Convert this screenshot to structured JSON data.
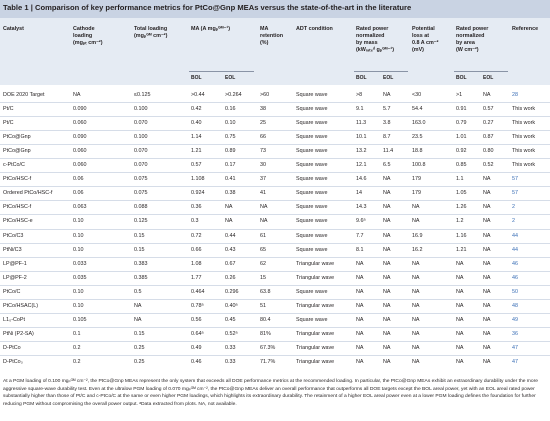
{
  "table": {
    "label": "Table 1 |",
    "title": "Comparison of key performance metrics for PtCo@Gnp MEAs versus the state-of-the-art in the literature",
    "headers": {
      "catalyst": "Catalyst",
      "cathode": [
        "Cathode",
        "loading",
        "(mgₚₜ cm⁻²)"
      ],
      "total": [
        "Total loading",
        "(mgₚᴳᴹ cm⁻²)"
      ],
      "ma": [
        "MA (A mgₚᴳᴹ⁻¹)"
      ],
      "ma_ret": [
        "MA",
        "retention",
        "(%)"
      ],
      "adt": [
        "ADT condition"
      ],
      "rated_mass": [
        "Rated power",
        "normalized",
        "by mass",
        "(kWᵣₐₜₑᵈ gₚᴳᴹ⁻¹)"
      ],
      "potential": [
        "Potential",
        "loss at",
        "0.8 A cm⁻²",
        "(mV)"
      ],
      "rated_area": [
        "Rated power",
        "normalized",
        "by area",
        "(W cm⁻²)"
      ],
      "reference": [
        "Reference"
      ],
      "bol": "BOL",
      "eol": "EOL"
    },
    "rows": [
      [
        "DOE 2020 Target",
        "NA",
        "≤0.125",
        ">0.44",
        ">0.264",
        ">60",
        "Square wave",
        ">8",
        "NA",
        "<30",
        ">1",
        "NA",
        "28"
      ],
      [
        "Pt/C",
        "0.090",
        "0.100",
        "0.42",
        "0.16",
        "38",
        "Square wave",
        "9.1",
        "5.7",
        "54.4",
        "0.91",
        "0.57",
        "This work"
      ],
      [
        "Pt/C",
        "0.060",
        "0.070",
        "0.40",
        "0.10",
        "25",
        "Square wave",
        "11.3",
        "3.8",
        "163.0",
        "0.79",
        "0.27",
        "This work"
      ],
      [
        "PtCo@Gnp",
        "0.090",
        "0.100",
        "1.14",
        "0.75",
        "66",
        "Square wave",
        "10.1",
        "8.7",
        "23.5",
        "1.01",
        "0.87",
        "This work"
      ],
      [
        "PtCo@Gnp",
        "0.060",
        "0.070",
        "1.21",
        "0.89",
        "73",
        "Square wave",
        "13.2",
        "11.4",
        "18.8",
        "0.92",
        "0.80",
        "This work"
      ],
      [
        "c-PtCo/C",
        "0.060",
        "0.070",
        "0.57",
        "0.17",
        "30",
        "Square wave",
        "12.1",
        "6.5",
        "100.8",
        "0.85",
        "0.52",
        "This work"
      ],
      [
        "PtCo/HSC-f",
        "0.06",
        "0.075",
        "1.108",
        "0.41",
        "37",
        "Square wave",
        "14.6",
        "NA",
        "179",
        "1.1",
        "NA",
        "57"
      ],
      [
        "Ordered PtCo/HSC-f",
        "0.06",
        "0.075",
        "0.924",
        "0.38",
        "41",
        "Square wave",
        "14",
        "NA",
        "179",
        "1.05",
        "NA",
        "57"
      ],
      [
        "PtCo/HSC-f",
        "0.063",
        "0.088",
        "0.36",
        "NA",
        "NA",
        "Square wave",
        "14.3",
        "NA",
        "NA",
        "1.26",
        "NA",
        "2"
      ],
      [
        "PtCo/HSC-e",
        "0.10",
        "0.125",
        "0.3",
        "NA",
        "NA",
        "Square wave",
        "9.6ᵃ",
        "NA",
        "NA",
        "1.2",
        "NA",
        "2"
      ],
      [
        "PtCo/C3",
        "0.10",
        "0.15",
        "0.72",
        "0.44",
        "61",
        "Square wave",
        "7.7",
        "NA",
        "16.9",
        "1.16",
        "NA",
        "44"
      ],
      [
        "PtNi/C3",
        "0.10",
        "0.15",
        "0.66",
        "0.43",
        "65",
        "Square wave",
        "8.1",
        "NA",
        "16.2",
        "1.21",
        "NA",
        "44"
      ],
      [
        "LP@PF-1",
        "0.033",
        "0.383",
        "1.08",
        "0.67",
        "62",
        "Triangular wave",
        "NA",
        "NA",
        "NA",
        "NA",
        "NA",
        "46"
      ],
      [
        "LP@PF-2",
        "0.035",
        "0.385",
        "1.77",
        "0.26",
        "15",
        "Triangular wave",
        "NA",
        "NA",
        "NA",
        "NA",
        "NA",
        "46"
      ],
      [
        "PtCo/C",
        "0.10",
        "0.5",
        "0.464",
        "0.296",
        "63.8",
        "Square wave",
        "NA",
        "NA",
        "NA",
        "NA",
        "NA",
        "50"
      ],
      [
        "PtCo/HSAC(L)",
        "0.10",
        "NA",
        "0.78ᵃ",
        "0.40ᵃ",
        "51",
        "Triangular wave",
        "NA",
        "NA",
        "NA",
        "NA",
        "NA",
        "48"
      ],
      [
        "L1₀-CoPt",
        "0.105",
        "NA",
        "0.56",
        "0.45",
        "80.4",
        "Square wave",
        "NA",
        "NA",
        "NA",
        "NA",
        "NA",
        "49"
      ],
      [
        "PtNi (P2-SA)",
        "0.1",
        "0.15",
        "0.64ᵃ",
        "0.52ᵃ",
        "81%",
        "Triangular wave",
        "NA",
        "NA",
        "NA",
        "NA",
        "NA",
        "36"
      ],
      [
        "D-PtCo",
        "0.2",
        "0.25",
        "0.49",
        "0.33",
        "67.3%",
        "Triangular wave",
        "NA",
        "NA",
        "NA",
        "NA",
        "NA",
        "47"
      ],
      [
        "D-PtCo₃",
        "0.2",
        "0.25",
        "0.46",
        "0.33",
        "71.7%",
        "Triangular wave",
        "NA",
        "NA",
        "NA",
        "NA",
        "NA",
        "47"
      ]
    ],
    "footnote": "At a PGM loading of 0.100 mgₚᴳᴹ cm⁻², the PtCo@Gnp MEAs represent the only system that exceeds all DOE performance metrics at the recommended loading. In particular, the PtCo@Gnp MEAs exhibit an extraordinary durability under the more aggressive square-wave durability test. Even at the ultralow PGM loading of 0.070 mgₚᴳᴹ cm⁻², the PtCo@Gnp MEAs deliver an overall performance that outperforms all DOE targets except the BOL areal power, yet with an EOL areal rated power substantially higher than those of Pt/C and c-PtCo/C at the same or even higher PGM loadings, which highlights its extraordinary durability. The retainment of a higher EOL areal power even at a lower PGM loading defines the foundation for further reducing PGM without compromising the overall power output. ᵃData extracted from plots. NA, not available."
  }
}
